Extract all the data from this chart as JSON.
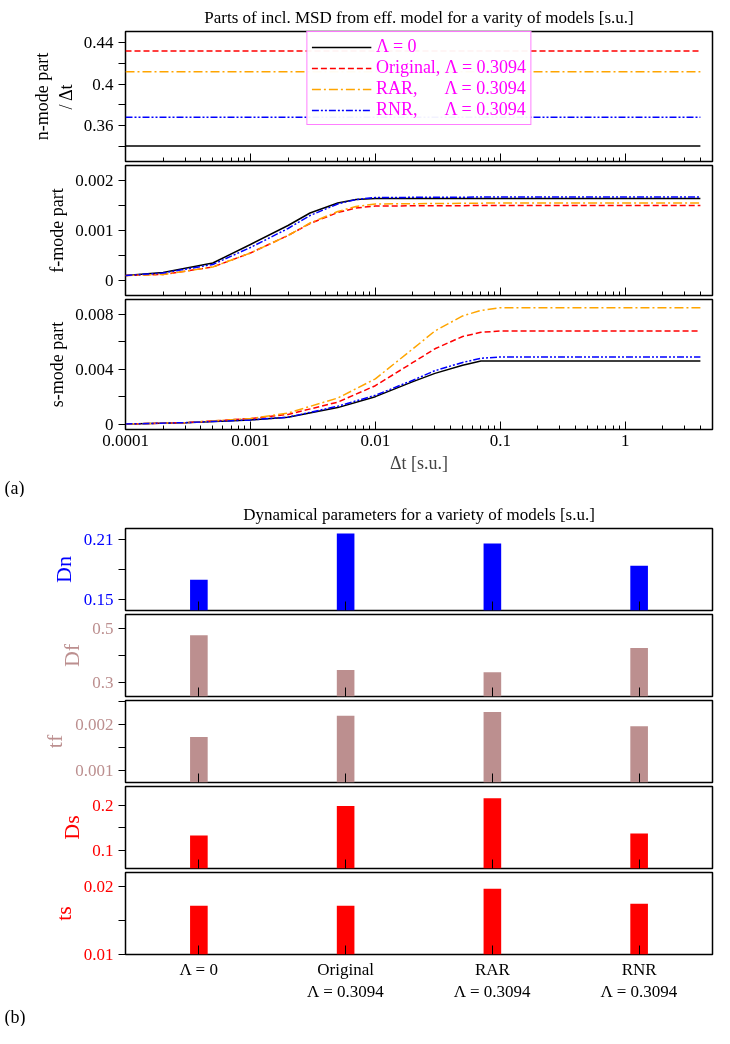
{
  "chart_data": [
    {
      "type": "line",
      "title": "Parts of incl. MSD from eff. model for a varity of models [s.u.]",
      "ylabel": "n-mode part\n/ Δt",
      "log": "x",
      "xlim": [
        0.0001,
        5
      ],
      "xticks": [
        0.0001,
        0.001,
        0.01,
        0.1,
        1
      ],
      "ylim": [
        0.325,
        0.451
      ],
      "yticks": [
        {
          "value": 0.34,
          "label": null
        },
        0.36,
        {
          "value": 0.38,
          "label": null
        },
        0.4,
        {
          "value": 0.42,
          "label": null
        },
        0.44
      ],
      "tick_labels": "y",
      "legend": "top",
      "x": [
        0.0001,
        4
      ],
      "series": [
        {
          "name": "Λ = 0",
          "color": "#000000",
          "line_style": "solid",
          "values": [
            0.34,
            0.34
          ]
        },
        {
          "name": "Original, Λ = 0.3094",
          "color": "#ff0000",
          "line_style": "dashed",
          "values": [
            0.432,
            0.432
          ]
        },
        {
          "name": "RAR,      Λ = 0.3094",
          "color": "#ffa500",
          "line_style": "dashdot",
          "values": [
            0.412,
            0.412
          ]
        },
        {
          "name": "RNR,      Λ = 0.3094",
          "color": "#0000ff",
          "line_style": "dashdotdot",
          "values": [
            0.368,
            0.368
          ]
        }
      ]
    },
    {
      "type": "line",
      "ylabel": "f-mode part",
      "log": "x",
      "xlim": [
        0.0001,
        5
      ],
      "xticks": [
        0.0001,
        0.001,
        0.01,
        0.1,
        1
      ],
      "ylim": [
        -0.0003,
        0.0023
      ],
      "yticks": [
        0,
        {
          "value": 0.0005,
          "label": null
        },
        0.001,
        {
          "value": 0.0015,
          "label": null
        },
        0.002
      ],
      "tick_labels": "y",
      "x": [
        0.0001,
        0.0002,
        0.0005,
        0.001,
        0.002,
        0.003,
        0.005,
        0.007,
        0.01,
        0.1,
        4
      ],
      "series": [
        {
          "color": "#000000",
          "line_style": "solid",
          "values": [
            0.0001,
            0.00016,
            0.00035,
            0.00072,
            0.0011,
            0.00135,
            0.00155,
            0.00162,
            0.00164,
            0.00164,
            0.00164
          ]
        },
        {
          "color": "#ff0000",
          "line_style": "dashed",
          "values": [
            0.0001,
            0.00012,
            0.00027,
            0.00055,
            0.0009,
            0.00114,
            0.00136,
            0.00145,
            0.00149,
            0.0015,
            0.0015
          ]
        },
        {
          "color": "#ffa500",
          "line_style": "dashdot",
          "values": [
            0.0001,
            0.00012,
            0.00027,
            0.00055,
            0.0009,
            0.00115,
            0.00138,
            0.00148,
            0.00153,
            0.00155,
            0.00155
          ]
        },
        {
          "color": "#0000ff",
          "line_style": "dashdotdot",
          "values": [
            0.0001,
            0.00015,
            0.00032,
            0.00066,
            0.00104,
            0.0013,
            0.00153,
            0.00162,
            0.00166,
            0.00167,
            0.00167
          ]
        }
      ]
    },
    {
      "type": "line",
      "ylabel": "s-mode part",
      "xlabel": "Δt [s.u.]",
      "log": "x",
      "xlim": [
        0.0001,
        5
      ],
      "xticks": [
        0.0001,
        0.001,
        0.01,
        0.1,
        1
      ],
      "ylim": [
        -0.0004,
        0.0091
      ],
      "yticks": [
        0,
        {
          "value": 0.002,
          "label": null
        },
        0.004,
        {
          "value": 0.006,
          "label": null
        },
        0.008
      ],
      "annotations": [
        "(a)"
      ],
      "x": [
        0.0001,
        0.0003,
        0.001,
        0.002,
        0.005,
        0.01,
        0.02,
        0.03,
        0.05,
        0.07,
        0.1,
        1,
        4
      ],
      "series": [
        {
          "color": "#000000",
          "line_style": "solid",
          "values": [
            0,
            0.0001,
            0.0003,
            0.0005,
            0.0012,
            0.002,
            0.0031,
            0.0037,
            0.0043,
            0.0046,
            0.0046,
            0.0046,
            0.0046
          ]
        },
        {
          "color": "#ff0000",
          "line_style": "dashed",
          "values": [
            0,
            0.0001,
            0.0004,
            0.0007,
            0.0016,
            0.0028,
            0.0045,
            0.0055,
            0.0064,
            0.0067,
            0.0068,
            0.0068,
            0.0068
          ]
        },
        {
          "color": "#ffa500",
          "line_style": "dashdot",
          "values": [
            0,
            0.0001,
            0.0004,
            0.0008,
            0.0019,
            0.0033,
            0.0055,
            0.0068,
            0.0079,
            0.0083,
            0.0085,
            0.0085,
            0.0085
          ]
        },
        {
          "color": "#0000ff",
          "line_style": "dashdotdot",
          "values": [
            0,
            0.0001,
            0.0003,
            0.0005,
            0.0013,
            0.0021,
            0.0032,
            0.0039,
            0.0045,
            0.0048,
            0.0049,
            0.0049,
            0.0049
          ]
        }
      ]
    },
    {
      "type": "bar",
      "title": "Dynamical parameters for a variety of models [s.u.]",
      "ylabel": "Dn",
      "ylim": [
        0.1395,
        0.221
      ],
      "yticks": [
        0.15,
        {
          "value": 0.18,
          "label": null
        },
        0.21
      ],
      "tick_labels": "y",
      "series": [
        {
          "color": "#0000ff",
          "values": [
            0.17,
            0.216,
            0.206,
            0.184
          ]
        }
      ]
    },
    {
      "type": "bar",
      "ylabel": "Df",
      "ylim": [
        0.25,
        0.55
      ],
      "yticks": [
        0.3,
        {
          "value": 0.4,
          "label": null
        },
        0.5
      ],
      "tick_labels": "y",
      "series": [
        {
          "color": "#bc8f8f",
          "values": [
            0.474,
            0.347,
            0.339,
            0.427
          ]
        }
      ]
    },
    {
      "type": "bar",
      "ylabel": "tf",
      "ylim": [
        0.00075,
        0.00253
      ],
      "yticks": [
        0.001,
        {
          "value": 0.0015,
          "label": null
        },
        0.002,
        {
          "value": 0.0025,
          "label": null
        }
      ],
      "tick_labels": "y",
      "series": [
        {
          "color": "#bc8f8f",
          "values": [
            0.00174,
            0.0022,
            0.00228,
            0.00197
          ]
        }
      ]
    },
    {
      "type": "bar",
      "ylabel": "Ds",
      "ylim": [
        0.06,
        0.241
      ],
      "yticks": [
        0.1,
        {
          "value": 0.15,
          "label": null
        },
        0.2
      ],
      "tick_labels": "y",
      "series": [
        {
          "color": "#ff0000",
          "values": [
            0.133,
            0.198,
            0.215,
            0.137
          ]
        }
      ]
    },
    {
      "type": "bar",
      "ylabel": "ts",
      "categories": [
        "Λ = 0",
        "Original\nΛ = 0.3094",
        "RAR\nΛ = 0.3094",
        "RNR\nΛ = 0.3094"
      ],
      "ylim": [
        0.01,
        0.0221
      ],
      "yticks": [
        0.01,
        {
          "value": 0.015,
          "label": null
        },
        0.02
      ],
      "annotations": [
        "(b)"
      ],
      "series": [
        {
          "color": "#ff0000",
          "values": [
            0.0172,
            0.0172,
            0.0197,
            0.0175
          ]
        }
      ]
    }
  ]
}
